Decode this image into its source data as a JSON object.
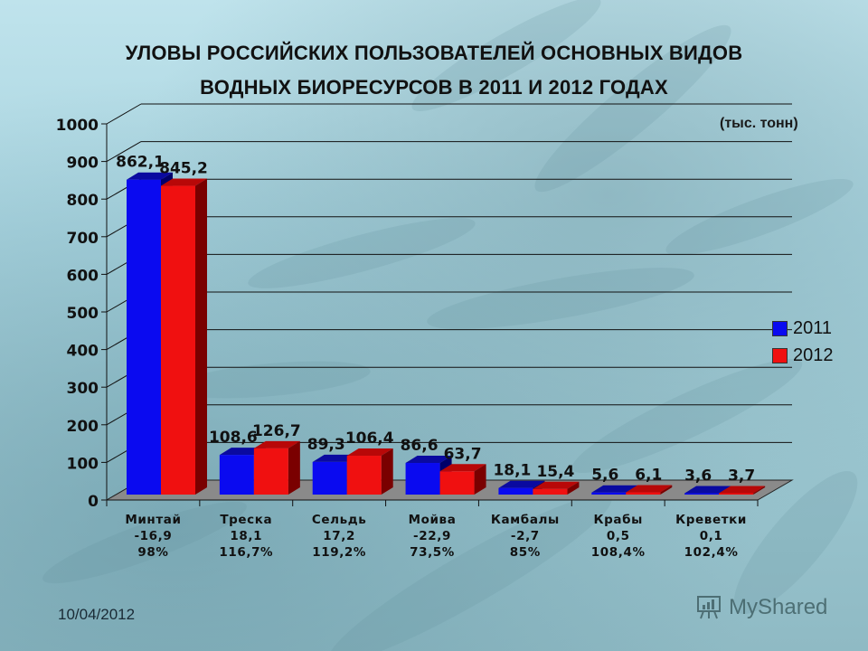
{
  "slide": {
    "title_line1": "УЛОВЫ РОССИЙСКИХ ПОЛЬЗОВАТЕЛЕЙ ОСНОВНЫХ ВИДОВ",
    "title_line2": "ВОДНЫХ БИОРЕСУРСОВ В 2011 И 2012 ГОДАХ",
    "unit": "(тыс. тонн)",
    "date": "10/04/2012",
    "watermark": "MyShared"
  },
  "colors": {
    "series_2011": "#0a0af0",
    "series_2011_top": "#0a0aa0",
    "series_2011_side": "#00006a",
    "series_2012": "#f01010",
    "series_2012_top": "#b80808",
    "series_2012_side": "#7a0000",
    "floor": "#8a8a8a"
  },
  "legend": {
    "items": [
      {
        "label": "2011",
        "color": "#0a0af0"
      },
      {
        "label": "2012",
        "color": "#f01010"
      }
    ]
  },
  "categories": [
    {
      "name": "Минтай",
      "delta": "-16,9",
      "percent": "98%",
      "v2011_label": "862,1",
      "v2012_label": "845,2"
    },
    {
      "name": "Треска",
      "delta": "18,1",
      "percent": "116,7%",
      "v2011_label": "108,6",
      "v2012_label": "126,7"
    },
    {
      "name": "Сельдь",
      "delta": "17,2",
      "percent": "119,2%",
      "v2011_label": "89,3",
      "v2012_label": "106,4"
    },
    {
      "name": "Мойва",
      "delta": "-22,9",
      "percent": "73,5%",
      "v2011_label": "86,6",
      "v2012_label": "63,7"
    },
    {
      "name": "Камбалы",
      "delta": "-2,7",
      "percent": "85%",
      "v2011_label": "18,1",
      "v2012_label": "15,4"
    },
    {
      "name": "Крабы",
      "delta": "0,5",
      "percent": "108,4%",
      "v2011_label": "5,6",
      "v2012_label": "6,1"
    },
    {
      "name": "Креветки",
      "delta": "0,1",
      "percent": "102,4%",
      "v2011_label": "3,6",
      "v2012_label": "3,7"
    }
  ],
  "y_axis": {
    "ticks": [
      "0",
      "100",
      "200",
      "300",
      "400",
      "500",
      "600",
      "700",
      "800",
      "900",
      "1000"
    ]
  },
  "chart_data": {
    "type": "bar",
    "title": "УЛОВЫ РОССИЙСКИХ ПОЛЬЗОВАТЕЛЕЙ ОСНОВНЫХ ВИДОВ ВОДНЫХ БИОРЕСУРСОВ В 2011 И 2012 ГОДАХ",
    "subtitle": "(тыс. тонн)",
    "categories": [
      "Минтай",
      "Треска",
      "Сельдь",
      "Мойва",
      "Камбалы",
      "Крабы",
      "Креветки"
    ],
    "series": [
      {
        "name": "2011",
        "values": [
          862.1,
          108.6,
          89.3,
          86.6,
          18.1,
          5.6,
          3.6
        ]
      },
      {
        "name": "2012",
        "values": [
          845.2,
          126.7,
          106.4,
          63.7,
          15.4,
          6.1,
          3.7
        ]
      }
    ],
    "annotations": {
      "change": [
        -16.9,
        18.1,
        17.2,
        -22.9,
        -2.7,
        0.5,
        0.1
      ],
      "percent_2012_of_2011": [
        "98%",
        "116,7%",
        "119,2%",
        "73,5%",
        "85%",
        "108,4%",
        "102,4%"
      ]
    },
    "xlabel": "",
    "ylabel": "тыс. тонн",
    "ylim": [
      0,
      1000
    ],
    "yticks": [
      0,
      100,
      200,
      300,
      400,
      500,
      600,
      700,
      800,
      900,
      1000
    ],
    "grid": true,
    "legend_position": "right",
    "style": "3d-clustered-column"
  }
}
